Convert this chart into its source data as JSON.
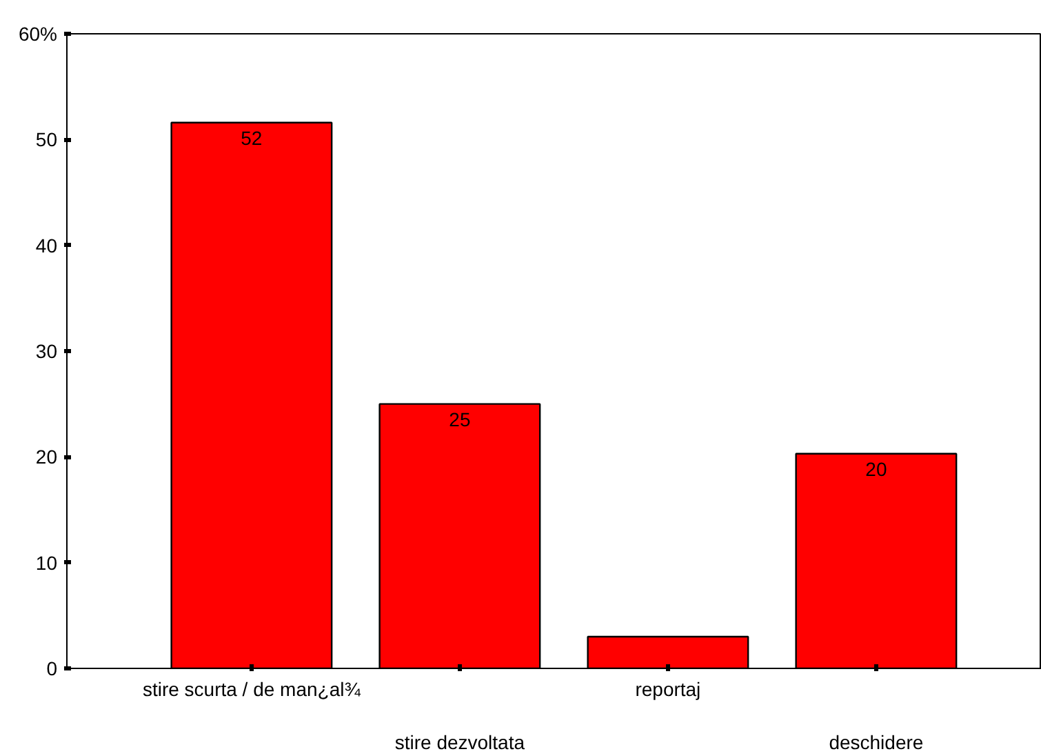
{
  "chart_data": {
    "type": "bar",
    "categories": [
      "stire scurta / de man¿al¾",
      "stire dezvoltata",
      "reportaj",
      "deschidere"
    ],
    "values": [
      51.6,
      25,
      3,
      20.3
    ],
    "value_labels": [
      "52",
      "25",
      null,
      "20"
    ],
    "color": "#ff0000",
    "ylim": [
      0,
      60
    ],
    "yticks": [
      0,
      10,
      20,
      30,
      40,
      50,
      {
        "value": 60,
        "label": "60%"
      }
    ],
    "grid": false
  }
}
